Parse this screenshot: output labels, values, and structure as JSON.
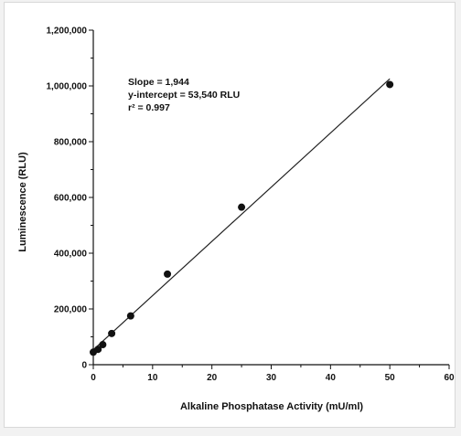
{
  "chart_data": {
    "type": "scatter",
    "title": "",
    "xlabel": "Alkaline Phosphatase Activity (mU/ml)",
    "ylabel": "Luminescence (RLU)",
    "xlim": [
      0,
      60
    ],
    "ylim": [
      0,
      1200000
    ],
    "x_ticks": [
      0,
      10,
      20,
      30,
      40,
      50,
      60
    ],
    "y_ticks": [
      0,
      200000,
      400000,
      600000,
      800000,
      1000000,
      1200000
    ],
    "x_tick_labels": [
      "0",
      "10",
      "20",
      "30",
      "40",
      "50",
      "60"
    ],
    "y_tick_labels": [
      "0",
      "200,000",
      "400,000",
      "600,000",
      "800,000",
      "1,000,000",
      "1,200,000"
    ],
    "grid": false,
    "series": [
      {
        "points": [
          {
            "x": 0,
            "y": 45000
          },
          {
            "x": 0.8,
            "y": 55000
          },
          {
            "x": 1.6,
            "y": 72000
          },
          {
            "x": 3.1,
            "y": 112000
          },
          {
            "x": 6.3,
            "y": 175000
          },
          {
            "x": 12.5,
            "y": 325000
          },
          {
            "x": 25,
            "y": 565000
          },
          {
            "x": 50,
            "y": 1005000
          }
        ]
      }
    ],
    "fit_line": {
      "slope": 1944,
      "intercept": 53540,
      "x_range": [
        0,
        50
      ]
    },
    "annotations": [
      "Slope = 1,944",
      "y-intercept = 53,540 RLU",
      "r² = 0.997"
    ]
  }
}
